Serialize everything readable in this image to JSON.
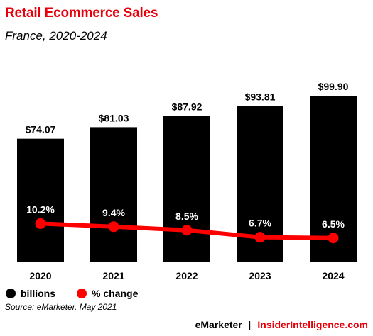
{
  "title": "Retail Ecommerce Sales",
  "subtitle": "France, 2020-2024",
  "legend": {
    "bars": "billions",
    "line": "% change"
  },
  "source": "Source: eMarketer, May 2021",
  "footer": {
    "brand1": "eMarketer",
    "separator": "|",
    "brand2": "InsiderIntelligence.com"
  },
  "colors": {
    "bar": "#000000",
    "line": "#ff0000",
    "title": "#e8000b"
  },
  "chart_data": {
    "type": "bar",
    "categories": [
      "2020",
      "2021",
      "2022",
      "2023",
      "2024"
    ],
    "series": [
      {
        "name": "billions",
        "type": "bar",
        "values": [
          74.07,
          81.03,
          87.92,
          93.81,
          99.9
        ],
        "labels": [
          "$74.07",
          "$81.03",
          "$87.92",
          "$93.81",
          "$99.90"
        ]
      },
      {
        "name": "% change",
        "type": "line",
        "values": [
          10.2,
          9.4,
          8.5,
          6.7,
          6.5
        ],
        "labels": [
          "10.2%",
          "9.4%",
          "8.5%",
          "6.7%",
          "6.5%"
        ]
      }
    ],
    "title": "Retail Ecommerce Sales",
    "subtitle": "France, 2020-2024",
    "ylim_bars": [
      0,
      110
    ],
    "legend_position": "bottom-left"
  }
}
